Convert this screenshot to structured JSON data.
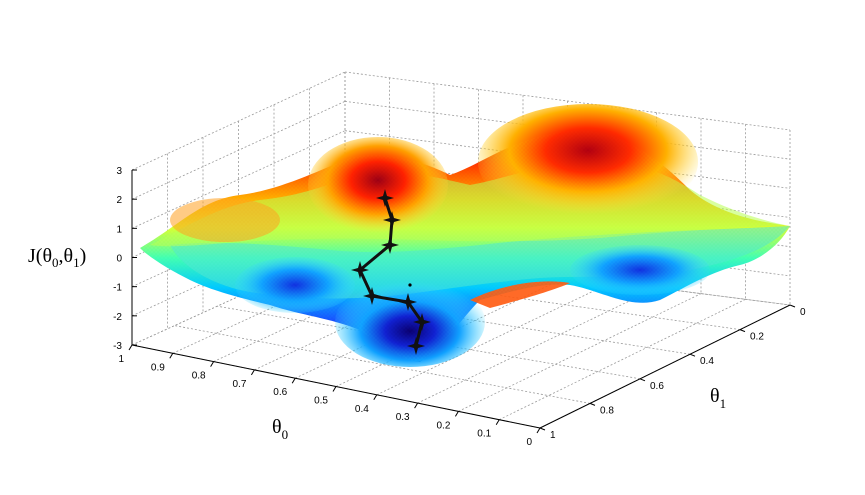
{
  "chart_data": {
    "type": "surface",
    "axes": {
      "z": {
        "label_main": "J(θ",
        "label_sub0": "0",
        "label_mid": ",θ",
        "label_sub1": "1",
        "label_close": ")",
        "ticks": [
          "3",
          "2",
          "1",
          "0",
          "-1",
          "-2",
          "-3"
        ],
        "values": [
          3,
          2,
          1,
          0,
          -1,
          -2,
          -3
        ],
        "range": [
          -3,
          3
        ]
      },
      "x": {
        "label_main": "θ",
        "label_sub": "0",
        "ticks": [
          "1",
          "0.9",
          "0.8",
          "0.7",
          "0.6",
          "0.5",
          "0.4",
          "0.3",
          "0.2",
          "0.1",
          "0"
        ],
        "values": [
          1,
          0.9,
          0.8,
          0.7,
          0.6,
          0.5,
          0.4,
          0.3,
          0.2,
          0.1,
          0
        ],
        "range": [
          0,
          1
        ]
      },
      "y": {
        "label_main": "θ",
        "label_sub": "1",
        "ticks": [
          "0",
          "0.2",
          "0.4",
          "0.6",
          "0.8",
          "1"
        ],
        "values": [
          0,
          0.2,
          0.4,
          0.6,
          0.8,
          1
        ],
        "range": [
          0,
          1
        ]
      }
    },
    "grid": true,
    "colormap": "jet",
    "descent_path": {
      "marker": "star",
      "steps": 9
    }
  }
}
